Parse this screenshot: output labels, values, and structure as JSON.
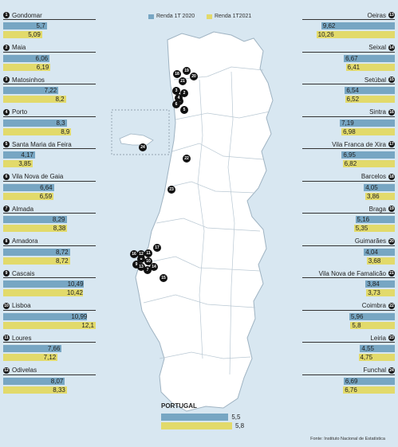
{
  "legend": {
    "series_2020": "Renda 1T 2020",
    "series_2021": "Renda 1T2021",
    "color_2020": "#77a6c3",
    "color_2021": "#e2da6b"
  },
  "source": "Fonte: Instituto Nacional de Estatística",
  "chart_data": {
    "type": "bar",
    "orientation": "horizontal",
    "series": [
      {
        "name": "Renda 1T 2020",
        "color": "#77a6c3"
      },
      {
        "name": "Renda 1T2021",
        "color": "#e2da6b"
      }
    ],
    "value_max": 12.1,
    "left": [
      {
        "id": "1",
        "name": "Gondomar",
        "v2020": "5,7",
        "v2021": "5,09"
      },
      {
        "id": "2",
        "name": "Maia",
        "v2020": "6,06",
        "v2021": "6,19"
      },
      {
        "id": "3",
        "name": "Matosinhos",
        "v2020": "7,22",
        "v2021": "8,2"
      },
      {
        "id": "4",
        "name": "Porto",
        "v2020": "8,3",
        "v2021": "8,9"
      },
      {
        "id": "5",
        "name": "Santa Maria da Feira",
        "v2020": "4,17",
        "v2021": "3,85"
      },
      {
        "id": "6",
        "name": "Vila Nova de Gaia",
        "v2020": "6,64",
        "v2021": "6,59"
      },
      {
        "id": "7",
        "name": "Almada",
        "v2020": "8,29",
        "v2021": "8,38"
      },
      {
        "id": "8",
        "name": "Amadora",
        "v2020": "8,72",
        "v2021": "8,72"
      },
      {
        "id": "9",
        "name": "Cascais",
        "v2020": "10,49",
        "v2021": "10,42"
      },
      {
        "id": "10",
        "name": "Lisboa",
        "v2020": "10,99",
        "v2021": "12,1"
      },
      {
        "id": "11",
        "name": "Loures",
        "v2020": "7,66",
        "v2021": "7,12"
      },
      {
        "id": "12",
        "name": "Odivelas",
        "v2020": "8,07",
        "v2021": "8,33"
      }
    ],
    "right": [
      {
        "id": "13",
        "name": "Oeiras",
        "v2020": "9,62",
        "v2021": "10,26"
      },
      {
        "id": "14",
        "name": "Seixal",
        "v2020": "6,67",
        "v2021": "6,41"
      },
      {
        "id": "15",
        "name": "Setúbal",
        "v2020": "6,54",
        "v2021": "6,52"
      },
      {
        "id": "16",
        "name": "Sintra",
        "v2020": "7,19",
        "v2021": "6,98"
      },
      {
        "id": "17",
        "name": "Vila Franca de Xira",
        "v2020": "6,95",
        "v2021": "6,82"
      },
      {
        "id": "18",
        "name": "Barcelos",
        "v2020": "4,05",
        "v2021": "3,86"
      },
      {
        "id": "19",
        "name": "Braga",
        "v2020": "5,16",
        "v2021": "5,35"
      },
      {
        "id": "20",
        "name": "Guimarães",
        "v2020": "4,04",
        "v2021": "3,68"
      },
      {
        "id": "21",
        "name": "Vila Nova de Famalicão",
        "v2020": "3,84",
        "v2021": "3,73"
      },
      {
        "id": "22",
        "name": "Coimbra",
        "v2020": "5,96",
        "v2021": "5,8"
      },
      {
        "id": "23",
        "name": "Leiria",
        "v2020": "4,55",
        "v2021": "4,75"
      },
      {
        "id": "24",
        "name": "Funchal",
        "v2020": "6,69",
        "v2021": "6,76"
      }
    ],
    "total": {
      "name": "PORTUGAL",
      "v2020": "5,5",
      "v2021": "5,8"
    }
  }
}
